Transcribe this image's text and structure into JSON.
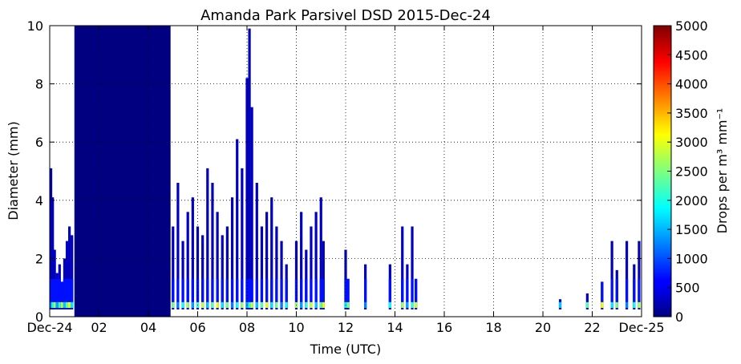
{
  "chart_data": {
    "type": "heatmap",
    "title": "Amanda Park Parsivel DSD 2015-Dec-24",
    "xlabel": "Time (UTC)",
    "ylabel": "Diameter (mm)",
    "xlim": [
      0,
      24
    ],
    "ylim": [
      0,
      10
    ],
    "x_ticks": [
      {
        "value": 0,
        "label": "Dec-24"
      },
      {
        "value": 2,
        "label": "02"
      },
      {
        "value": 4,
        "label": "04"
      },
      {
        "value": 6,
        "label": "06"
      },
      {
        "value": 8,
        "label": "08"
      },
      {
        "value": 10,
        "label": "10"
      },
      {
        "value": 12,
        "label": "12"
      },
      {
        "value": 14,
        "label": "14"
      },
      {
        "value": 16,
        "label": "16"
      },
      {
        "value": 18,
        "label": "18"
      },
      {
        "value": 20,
        "label": "20"
      },
      {
        "value": 22,
        "label": "22"
      },
      {
        "value": 24,
        "label": "Dec-25"
      }
    ],
    "y_ticks": [
      0,
      2,
      4,
      6,
      8,
      10
    ],
    "grid": true,
    "colorbar": {
      "label": "Drops per m³ mm⁻¹",
      "range": [
        0,
        5000
      ],
      "ticks": [
        0,
        500,
        1000,
        1500,
        2000,
        2500,
        3000,
        3500,
        4000,
        4500,
        5000
      ],
      "colormap": "jet"
    },
    "filled_block": {
      "x_start": 1.0,
      "x_end": 4.9,
      "y_top": 10,
      "value": 0
    },
    "precip_columns": [
      {
        "t": 0.05,
        "top": 5.1
      },
      {
        "t": 0.12,
        "top": 4.1
      },
      {
        "t": 0.2,
        "top": 2.3
      },
      {
        "t": 0.3,
        "top": 1.5
      },
      {
        "t": 0.4,
        "top": 1.8
      },
      {
        "t": 0.5,
        "top": 1.2
      },
      {
        "t": 0.6,
        "top": 2.0
      },
      {
        "t": 0.7,
        "top": 2.6
      },
      {
        "t": 0.8,
        "top": 3.1
      },
      {
        "t": 0.9,
        "top": 2.8
      },
      {
        "t": 5.0,
        "top": 3.1
      },
      {
        "t": 5.2,
        "top": 4.6
      },
      {
        "t": 5.4,
        "top": 2.6
      },
      {
        "t": 5.6,
        "top": 3.6
      },
      {
        "t": 5.8,
        "top": 4.1
      },
      {
        "t": 6.0,
        "top": 3.1
      },
      {
        "t": 6.2,
        "top": 2.8
      },
      {
        "t": 6.4,
        "top": 5.1
      },
      {
        "t": 6.6,
        "top": 4.6
      },
      {
        "t": 6.8,
        "top": 3.6
      },
      {
        "t": 7.0,
        "top": 2.8
      },
      {
        "t": 7.2,
        "top": 3.1
      },
      {
        "t": 7.4,
        "top": 4.1
      },
      {
        "t": 7.6,
        "top": 6.1
      },
      {
        "t": 7.8,
        "top": 5.1
      },
      {
        "t": 8.0,
        "top": 8.2
      },
      {
        "t": 8.1,
        "top": 9.9
      },
      {
        "t": 8.2,
        "top": 7.2
      },
      {
        "t": 8.4,
        "top": 4.6
      },
      {
        "t": 8.6,
        "top": 3.1
      },
      {
        "t": 8.8,
        "top": 3.6
      },
      {
        "t": 9.0,
        "top": 4.1
      },
      {
        "t": 9.2,
        "top": 3.1
      },
      {
        "t": 9.4,
        "top": 2.6
      },
      {
        "t": 9.6,
        "top": 1.8
      },
      {
        "t": 10.0,
        "top": 2.6
      },
      {
        "t": 10.2,
        "top": 3.6
      },
      {
        "t": 10.4,
        "top": 2.3
      },
      {
        "t": 10.6,
        "top": 3.1
      },
      {
        "t": 10.8,
        "top": 3.6
      },
      {
        "t": 11.0,
        "top": 4.1
      },
      {
        "t": 11.1,
        "top": 2.6
      },
      {
        "t": 12.0,
        "top": 2.3
      },
      {
        "t": 12.1,
        "top": 1.3
      },
      {
        "t": 12.8,
        "top": 1.8
      },
      {
        "t": 13.8,
        "top": 1.8
      },
      {
        "t": 14.3,
        "top": 3.1
      },
      {
        "t": 14.5,
        "top": 1.8
      },
      {
        "t": 14.7,
        "top": 3.1
      },
      {
        "t": 14.85,
        "top": 1.3
      },
      {
        "t": 20.7,
        "top": 0.6
      },
      {
        "t": 21.8,
        "top": 0.8
      },
      {
        "t": 22.4,
        "top": 1.2
      },
      {
        "t": 22.8,
        "top": 2.6
      },
      {
        "t": 23.0,
        "top": 1.6
      },
      {
        "t": 23.4,
        "top": 2.6
      },
      {
        "t": 23.7,
        "top": 1.8
      },
      {
        "t": 23.9,
        "top": 2.6
      }
    ]
  }
}
